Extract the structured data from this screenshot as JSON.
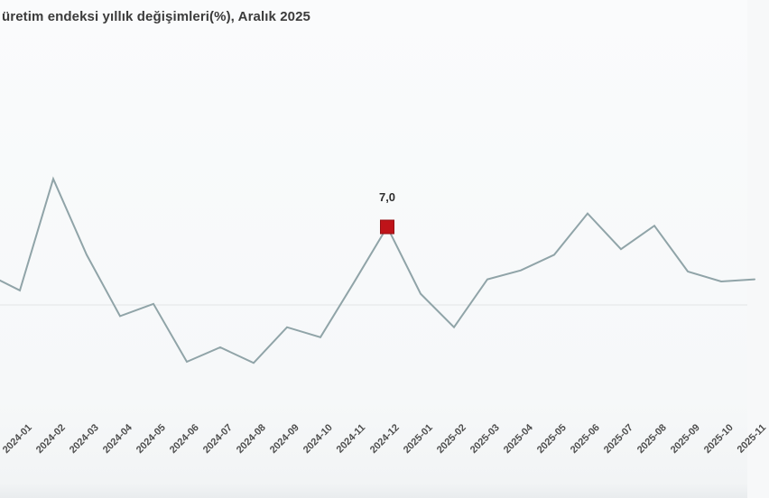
{
  "title": "üretim endeksi yıllık değişimleri(%), Aralık 2025",
  "colors": {
    "background": "#f7f8f9",
    "line": "#90a4a8",
    "marker_fill": "#bf1319",
    "marker_border": "#951014",
    "zero_line": "#e3e5e6",
    "title_text": "#3b3b3b",
    "axis_text": "#4e4e4e",
    "data_label_text": "#2f2f2f"
  },
  "chart_data": {
    "type": "line",
    "title": "üretim endeksi yıllık değişimleri(%), Aralık 2025",
    "x": [
      "2024-01",
      "2024-02",
      "2024-03",
      "2024-04",
      "2024-05",
      "2024-06",
      "2024-07",
      "2024-08",
      "2024-09",
      "2024-10",
      "2024-11",
      "2024-12",
      "2025-01",
      "2025-02",
      "2025-03",
      "2025-04",
      "2025-05",
      "2025-06",
      "2025-07",
      "2025-08",
      "2025-09",
      "2025-10",
      "2025-11"
    ],
    "values": [
      1.3,
      11.3,
      4.5,
      -1.0,
      0.1,
      -5.1,
      -3.8,
      -5.2,
      -2.0,
      -2.9,
      2.0,
      7.0,
      1.0,
      -2.0,
      2.3,
      3.1,
      4.5,
      8.2,
      5.0,
      7.1,
      3.0,
      2.1,
      2.3
    ],
    "edge_lead_value": 2.8,
    "highlight": {
      "x": "2024-12",
      "value": 7.0,
      "label": "7,0"
    },
    "ylim": [
      -7,
      13
    ],
    "grid": "zero-line-only",
    "legend": false,
    "xlabel_rotation": -45,
    "notes": "series enters from left edge mid-segment; last month label and segment clipped at right edge"
  }
}
